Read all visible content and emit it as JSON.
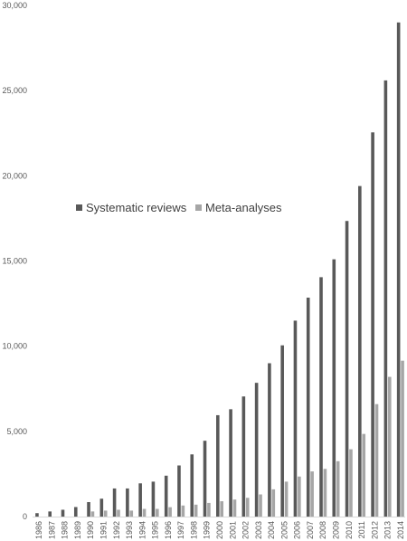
{
  "chart_data": {
    "type": "bar",
    "title": "",
    "xlabel": "",
    "ylabel": "",
    "ylim": [
      0,
      30000
    ],
    "yticks": [
      0,
      5000,
      10000,
      15000,
      20000,
      25000,
      30000
    ],
    "ytick_labels": [
      "0",
      "5,000",
      "10,000",
      "15,000",
      "20,000",
      "25,000",
      "30,000"
    ],
    "grid": false,
    "legend_position": "middle-left",
    "categories": [
      "1986",
      "1987",
      "1988",
      "1989",
      "1990",
      "1991",
      "1992",
      "1993",
      "1994",
      "1995",
      "1996",
      "1997",
      "1998",
      "1999",
      "2000",
      "2001",
      "2002",
      "2003",
      "2004",
      "2005",
      "2006",
      "2007",
      "2008",
      "2009",
      "2010",
      "2011",
      "2012",
      "2013",
      "2014"
    ],
    "series": [
      {
        "name": "Systematic reviews",
        "color": "#595959",
        "values": [
          200,
          300,
          400,
          560,
          850,
          1050,
          1650,
          1650,
          1950,
          2050,
          2400,
          3000,
          3650,
          4450,
          5950,
          6300,
          7050,
          7850,
          9000,
          10050,
          11500,
          12850,
          14050,
          15100,
          17350,
          19400,
          22550,
          25600,
          29000
        ]
      },
      {
        "name": "Meta-analyses",
        "color": "#a6a6a6",
        "values": [
          0,
          0,
          0,
          0,
          300,
          350,
          400,
          350,
          450,
          450,
          550,
          650,
          700,
          800,
          900,
          1000,
          1100,
          1300,
          1600,
          2050,
          2350,
          2650,
          2800,
          3250,
          3950,
          4850,
          6600,
          8200,
          9150
        ]
      }
    ]
  }
}
